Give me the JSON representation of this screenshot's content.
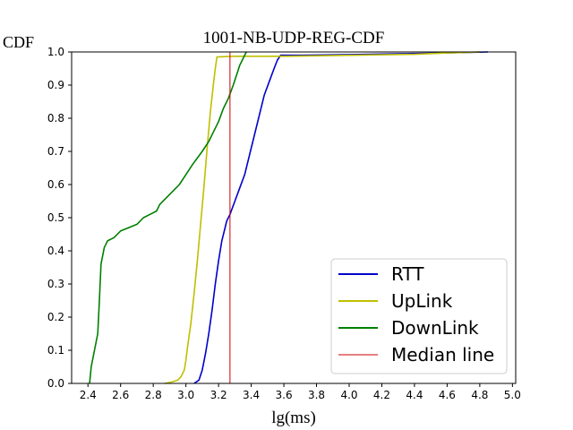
{
  "chart_data": {
    "type": "line",
    "title": "1001-NB-UDP-REG-CDF",
    "xlabel": "lg(ms)",
    "ylabel": "CDF",
    "xlim": [
      2.3,
      5.02
    ],
    "ylim": [
      0,
      1.0
    ],
    "xticks": [
      "2.4",
      "2.6",
      "2.8",
      "3.0",
      "3.2",
      "3.4",
      "3.6",
      "3.8",
      "4.0",
      "4.2",
      "4.4",
      "4.6",
      "4.8",
      "5.0"
    ],
    "yticks": [
      "0.0",
      "0.1",
      "0.2",
      "0.3",
      "0.4",
      "0.5",
      "0.6",
      "0.7",
      "0.8",
      "0.9",
      "1.0"
    ],
    "grid": false,
    "legend_position": "lower-right",
    "series": [
      {
        "name": "RTT",
        "color": "#0000cc",
        "points": [
          [
            3.05,
            0.0
          ],
          [
            3.08,
            0.01
          ],
          [
            3.1,
            0.04
          ],
          [
            3.12,
            0.09
          ],
          [
            3.14,
            0.15
          ],
          [
            3.16,
            0.22
          ],
          [
            3.18,
            0.3
          ],
          [
            3.2,
            0.37
          ],
          [
            3.22,
            0.43
          ],
          [
            3.25,
            0.49
          ],
          [
            3.27,
            0.51
          ],
          [
            3.3,
            0.55
          ],
          [
            3.33,
            0.59
          ],
          [
            3.36,
            0.63
          ],
          [
            3.39,
            0.69
          ],
          [
            3.42,
            0.75
          ],
          [
            3.45,
            0.81
          ],
          [
            3.48,
            0.87
          ],
          [
            3.51,
            0.91
          ],
          [
            3.54,
            0.95
          ],
          [
            3.56,
            0.975
          ],
          [
            3.58,
            0.99
          ],
          [
            3.7,
            0.99
          ],
          [
            4.0,
            0.992
          ],
          [
            4.5,
            0.996
          ],
          [
            4.85,
            1.0
          ]
        ]
      },
      {
        "name": "UpLink",
        "color": "#bfbf00",
        "points": [
          [
            2.87,
            0.0
          ],
          [
            2.92,
            0.005
          ],
          [
            2.95,
            0.01
          ],
          [
            2.97,
            0.02
          ],
          [
            2.99,
            0.04
          ],
          [
            3.0,
            0.07
          ],
          [
            3.01,
            0.11
          ],
          [
            3.03,
            0.18
          ],
          [
            3.05,
            0.27
          ],
          [
            3.07,
            0.37
          ],
          [
            3.09,
            0.48
          ],
          [
            3.11,
            0.59
          ],
          [
            3.13,
            0.71
          ],
          [
            3.15,
            0.82
          ],
          [
            3.17,
            0.91
          ],
          [
            3.18,
            0.95
          ],
          [
            3.19,
            0.985
          ],
          [
            3.3,
            0.987
          ],
          [
            3.6,
            0.987
          ],
          [
            4.0,
            0.99
          ],
          [
            4.4,
            0.993
          ],
          [
            4.6,
            0.997
          ],
          [
            4.8,
            1.0
          ]
        ]
      },
      {
        "name": "DownLink",
        "color": "#008000",
        "points": [
          [
            2.41,
            0.0
          ],
          [
            2.42,
            0.05
          ],
          [
            2.44,
            0.1
          ],
          [
            2.46,
            0.15
          ],
          [
            2.47,
            0.25
          ],
          [
            2.48,
            0.36
          ],
          [
            2.5,
            0.41
          ],
          [
            2.52,
            0.43
          ],
          [
            2.56,
            0.44
          ],
          [
            2.6,
            0.46
          ],
          [
            2.65,
            0.47
          ],
          [
            2.7,
            0.48
          ],
          [
            2.74,
            0.5
          ],
          [
            2.78,
            0.51
          ],
          [
            2.82,
            0.52
          ],
          [
            2.84,
            0.54
          ],
          [
            2.88,
            0.56
          ],
          [
            2.92,
            0.58
          ],
          [
            2.96,
            0.6
          ],
          [
            3.0,
            0.63
          ],
          [
            3.04,
            0.66
          ],
          [
            3.07,
            0.68
          ],
          [
            3.1,
            0.7
          ],
          [
            3.14,
            0.73
          ],
          [
            3.17,
            0.76
          ],
          [
            3.2,
            0.79
          ],
          [
            3.23,
            0.83
          ],
          [
            3.26,
            0.86
          ],
          [
            3.29,
            0.9
          ],
          [
            3.31,
            0.93
          ],
          [
            3.33,
            0.96
          ],
          [
            3.35,
            0.98
          ],
          [
            3.37,
            1.0
          ]
        ]
      },
      {
        "name": "Median line",
        "color": "#cc0000",
        "points": [
          [
            3.27,
            0.0
          ],
          [
            3.27,
            1.0
          ]
        ]
      }
    ]
  }
}
